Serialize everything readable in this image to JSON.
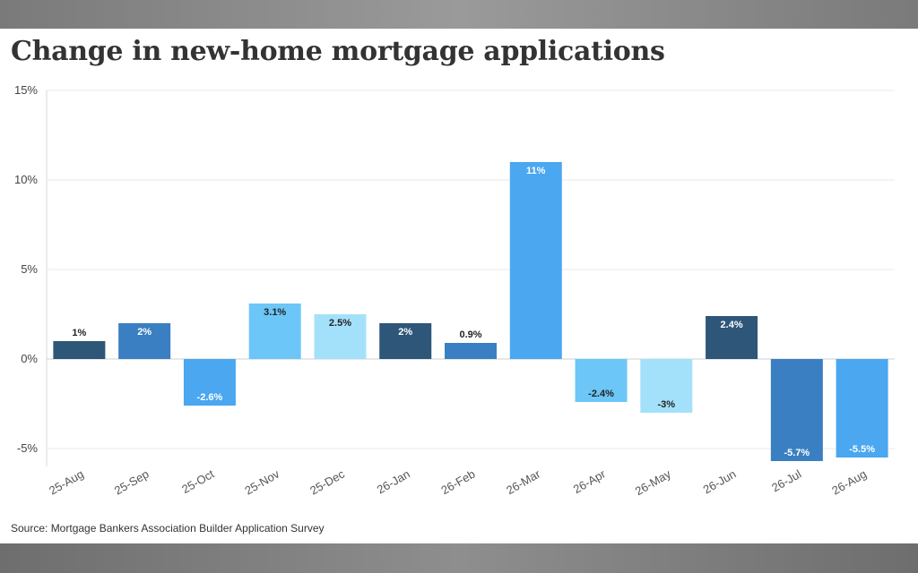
{
  "title": "Change in new-home mortgage applications",
  "source": "Source: Mortgage Bankers Association Builder Application Survey",
  "chart_data": {
    "type": "bar",
    "title": "Change in new-home mortgage applications",
    "xlabel": "",
    "ylabel": "",
    "ylim": [
      -6,
      15
    ],
    "yticks": [
      -5,
      0,
      5,
      10,
      15
    ],
    "ytick_labels": [
      "-5%",
      "0%",
      "5%",
      "10%",
      "15%"
    ],
    "grid": true,
    "legend": "none",
    "categories": [
      "25-Aug",
      "25-Sep",
      "25-Oct",
      "25-Nov",
      "25-Dec",
      "26-Jan",
      "26-Feb",
      "26-Mar",
      "26-Apr",
      "26-May",
      "26-Jun",
      "26-Jul",
      "26-Aug"
    ],
    "values": [
      1,
      2,
      -2.6,
      3.1,
      2.5,
      2,
      0.9,
      11,
      -2.4,
      -3,
      2.4,
      -5.7,
      -5.5
    ],
    "data_labels": [
      "1%",
      "2%",
      "-2.6%",
      "3.1%",
      "2.5%",
      "2%",
      "0.9%",
      "11%",
      "-2.4%",
      "-3%",
      "2.4%",
      "-5.7%",
      "-5.5%"
    ],
    "bar_colors": [
      "#2e5678",
      "#3a7fc1",
      "#4aa7f0",
      "#6cc6f7",
      "#a3e1fb",
      "#2e5678",
      "#3a7fc1",
      "#4aa7f0",
      "#6cc6f7",
      "#a3e1fb",
      "#2e5678",
      "#3a7fc1",
      "#4aa7f0"
    ],
    "label_colors": [
      "#222222",
      "#ffffff",
      "#ffffff",
      "#222222",
      "#222222",
      "#ffffff",
      "#222222",
      "#ffffff",
      "#222222",
      "#222222",
      "#ffffff",
      "#ffffff",
      "#ffffff"
    ]
  }
}
